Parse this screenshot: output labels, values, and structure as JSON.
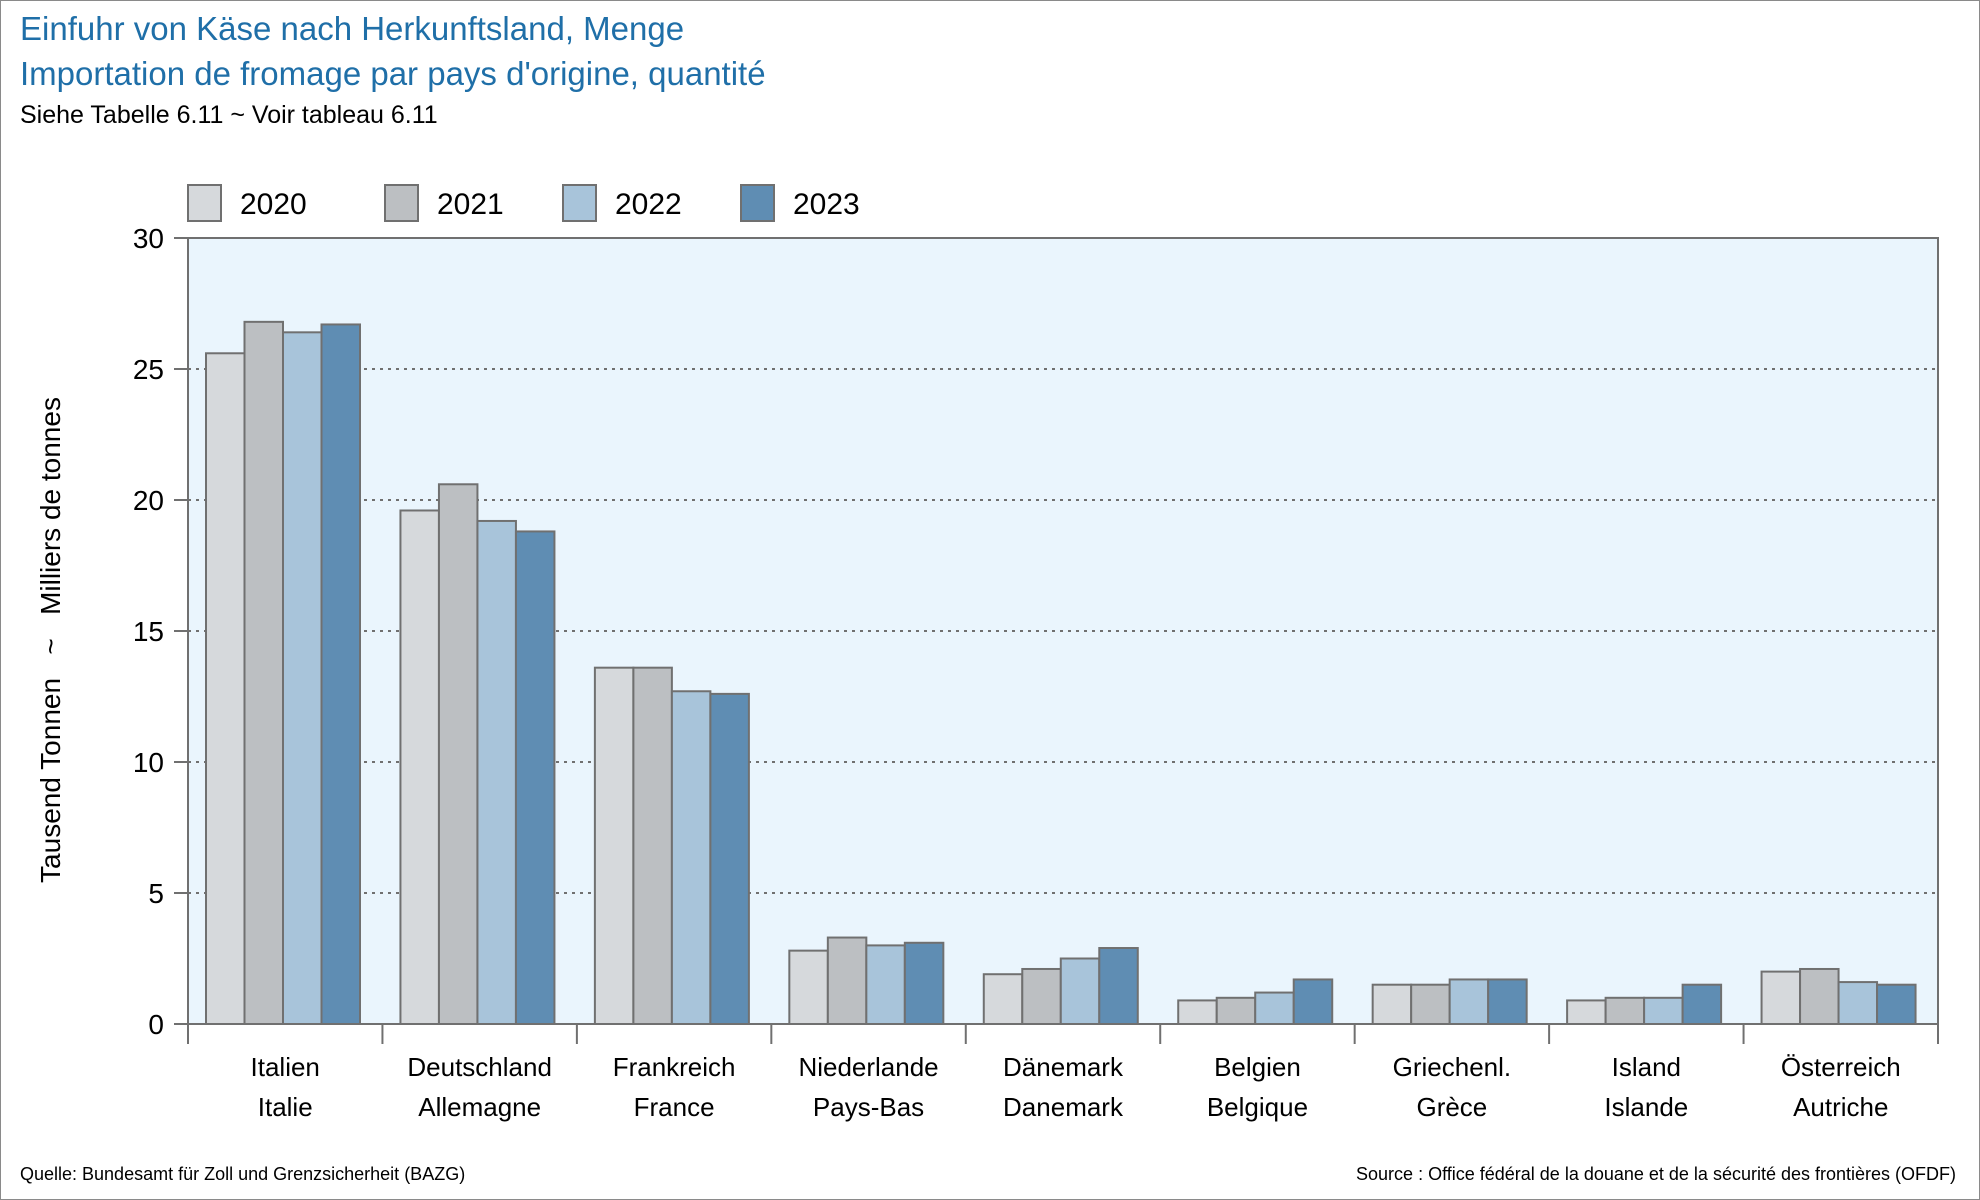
{
  "title_de": "Einfuhr von Käse nach Herkunftsland, Menge",
  "title_fr": "Importation de fromage par pays d'origine, quantité",
  "subtitle": "Siehe Tabelle 6.11   ~   Voir tableau 6.11",
  "source_de": "Quelle: Bundesamt für Zoll und Grenzsicherheit (BAZG)",
  "source_fr": "Source : Office fédéral de la douane et de la sécurité des frontières (OFDF)",
  "colors": {
    "plot_background": "#eaf5fd",
    "grid": "#707070",
    "axis": "#707070",
    "bar_outline": "#707070"
  },
  "chart_data": {
    "type": "bar",
    "ylabel": "Tausend Tonnen   ~   Milliers de tonnes",
    "ylim": [
      0,
      30
    ],
    "yticks": [
      0,
      5,
      10,
      15,
      20,
      25,
      30
    ],
    "grid": "horizontal dotted",
    "legend_position": "top-left",
    "categories": [
      [
        "Italien",
        "Italie"
      ],
      [
        "Deutschland",
        "Allemagne"
      ],
      [
        "Frankreich",
        "France"
      ],
      [
        "Niederlande",
        "Pays-Bas"
      ],
      [
        "Dänemark",
        "Danemark"
      ],
      [
        "Belgien",
        "Belgique"
      ],
      [
        "Griechenl.",
        "Grèce"
      ],
      [
        "Island",
        "Islande"
      ],
      [
        "Österreich",
        "Autriche"
      ]
    ],
    "series": [
      {
        "name": "2020",
        "color": "#d6d9dc",
        "values": [
          25.6,
          19.6,
          13.6,
          2.8,
          1.9,
          0.9,
          1.5,
          0.9,
          2.0
        ]
      },
      {
        "name": "2021",
        "color": "#bcbfc2",
        "values": [
          26.8,
          20.6,
          13.6,
          3.3,
          2.1,
          1.0,
          1.5,
          1.0,
          2.1
        ]
      },
      {
        "name": "2022",
        "color": "#a8c4da",
        "values": [
          26.4,
          19.2,
          12.7,
          3.0,
          2.5,
          1.2,
          1.7,
          1.0,
          1.6
        ]
      },
      {
        "name": "2023",
        "color": "#5f8db3",
        "values": [
          26.7,
          18.8,
          12.6,
          3.1,
          2.9,
          1.7,
          1.7,
          1.5,
          1.5
        ]
      }
    ]
  }
}
